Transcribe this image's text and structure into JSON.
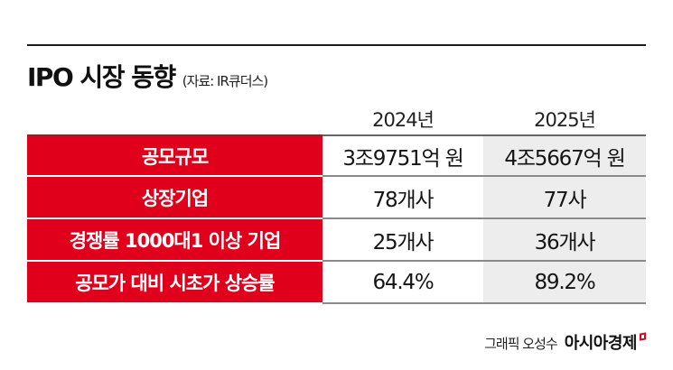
{
  "header": {
    "title": "IPO 시장 동향",
    "source": "(자료: IR큐더스)"
  },
  "columns": [
    "2024년",
    "2025년"
  ],
  "rows": [
    {
      "label": "공모규모",
      "values": [
        "3조9751억 원",
        "4조5667억 원"
      ]
    },
    {
      "label": "상장기업",
      "values": [
        "78개사",
        "77사"
      ]
    },
    {
      "label": "경쟁률 1000대1 이상 기업",
      "values": [
        "25개사",
        "36개사"
      ]
    },
    {
      "label": "공모가 대비 시초가 상승률",
      "values": [
        "64.4%",
        "89.2%"
      ]
    }
  ],
  "footer": {
    "credit": "그래픽 오성수",
    "brand": "아시아경제",
    "brand_icon": "brand-mark-icon"
  },
  "colors": {
    "label_bg": "#e0001b",
    "label_text": "#ffffff",
    "col2_bg": "#ededed",
    "rule": "#1a1a1a"
  },
  "chart_data": {
    "type": "table",
    "title": "IPO 시장 동향",
    "subtitle": "(자료: IR큐더스)",
    "columns": [
      "",
      "2024년",
      "2025년"
    ],
    "rows": [
      [
        "공모규모",
        "3조9751억 원",
        "4조5667억 원"
      ],
      [
        "상장기업",
        "78개사",
        "77사"
      ],
      [
        "경쟁률 1000대1 이상 기업",
        "25개사",
        "36개사"
      ],
      [
        "공모가 대비 시초가 상승률",
        "64.4%",
        "89.2%"
      ]
    ],
    "series": [
      {
        "name": "2024년",
        "values": {
          "공모규모_억원": 39751,
          "상장기업_개사": 78,
          "경쟁률1000대1이상_개사": 25,
          "시초가상승률_pct": 64.4
        }
      },
      {
        "name": "2025년",
        "values": {
          "공모규모_억원": 45667,
          "상장기업_개사": 77,
          "경쟁률1000대1이상_개사": 36,
          "시초가상승률_pct": 89.2
        }
      }
    ],
    "annotations": [
      "그래픽 오성수",
      "아시아경제"
    ]
  }
}
